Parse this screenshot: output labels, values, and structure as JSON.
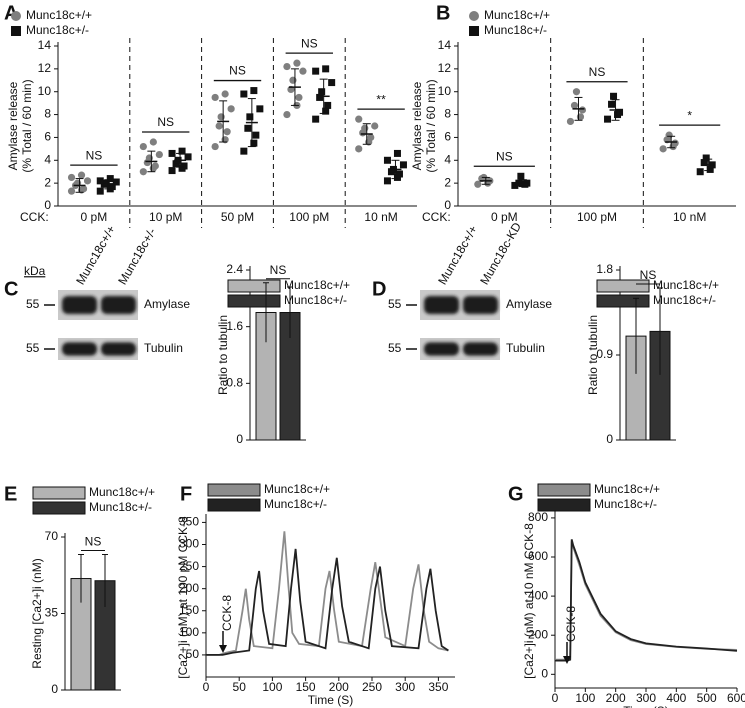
{
  "chart_data": [
    {
      "panel": "A",
      "type": "dot",
      "ylabel_lines": [
        "Amylase release",
        "(% Total / 60 min)"
      ],
      "xprefix": "CCK:",
      "categories": [
        "0 pM",
        "10 pM",
        "50 pM",
        "100 pM",
        "10 nM"
      ],
      "ylim": [
        0,
        14
      ],
      "yticks": [
        0,
        2,
        4,
        6,
        8,
        10,
        12,
        14
      ],
      "series": [
        {
          "name": "Munc18c+/+",
          "color": "#7f7f7f",
          "marker": "circle",
          "values": [
            [
              1.3,
              1.4,
              1.5,
              1.8,
              2.0,
              2.2,
              2.5,
              2.7
            ],
            [
              3.0,
              3.3,
              3.5,
              3.8,
              4.2,
              4.5,
              5.2,
              5.6
            ],
            [
              5.2,
              5.8,
              6.5,
              7.0,
              7.8,
              8.5,
              9.5,
              9.8
            ],
            [
              8.0,
              8.8,
              9.5,
              10.2,
              11.0,
              11.8,
              12.2,
              12.5
            ],
            [
              5.0,
              5.6,
              6.0,
              6.4,
              6.8,
              7.0,
              7.6
            ]
          ],
          "means": [
            1.8,
            3.9,
            7.4,
            10.4,
            6.3
          ],
          "errors": [
            0.6,
            0.9,
            1.8,
            1.6,
            0.9
          ]
        },
        {
          "name": "Munc18c+/-",
          "color": "#111111",
          "marker": "square",
          "values": [
            [
              1.3,
              1.5,
              1.7,
              1.9,
              2.0,
              2.1,
              2.2,
              2.4
            ],
            [
              3.1,
              3.3,
              3.5,
              3.7,
              4.0,
              4.3,
              4.6,
              4.8
            ],
            [
              4.8,
              5.5,
              6.2,
              6.8,
              7.8,
              8.5,
              9.8,
              10.1
            ],
            [
              7.6,
              8.3,
              8.8,
              9.5,
              10.0,
              10.8,
              11.8,
              12.0
            ],
            [
              2.2,
              2.5,
              2.8,
              3.0,
              3.2,
              3.6,
              4.0,
              4.6
            ]
          ],
          "means": [
            1.9,
            4.0,
            7.3,
            9.6,
            3.2
          ],
          "errors": [
            0.4,
            0.6,
            2.1,
            1.5,
            0.8
          ]
        }
      ],
      "significance": [
        "NS",
        "NS",
        "NS",
        "NS",
        "**"
      ]
    },
    {
      "panel": "B",
      "type": "dot",
      "ylabel_lines": [
        "Amylase release",
        "(% Total / 60 min)"
      ],
      "xprefix": "CCK:",
      "categories": [
        "0 pM",
        "100 pM",
        "10 nM"
      ],
      "ylim": [
        0,
        14
      ],
      "yticks": [
        0,
        2,
        4,
        6,
        8,
        10,
        12,
        14
      ],
      "series": [
        {
          "name": "Munc18c+/+",
          "color": "#7f7f7f",
          "marker": "circle",
          "values": [
            [
              1.9,
              2.0,
              2.2,
              2.4,
              2.5
            ],
            [
              7.4,
              7.8,
              8.4,
              8.8,
              10.0
            ],
            [
              5.0,
              5.2,
              5.5,
              5.8,
              6.2
            ]
          ],
          "means": [
            2.2,
            8.5,
            5.6
          ],
          "errors": [
            0.3,
            1.0,
            0.5
          ]
        },
        {
          "name": "Munc18c+/-",
          "color": "#111111",
          "marker": "square",
          "values": [
            [
              1.8,
              1.9,
              2.0,
              2.0,
              2.6
            ],
            [
              7.6,
              8.0,
              8.2,
              8.9,
              9.6
            ],
            [
              3.0,
              3.2,
              3.6,
              3.8,
              4.2
            ]
          ],
          "means": [
            2.0,
            8.4,
            3.6
          ],
          "errors": [
            0.3,
            0.9,
            0.5
          ]
        }
      ],
      "significance": [
        "NS",
        "NS",
        "*"
      ]
    },
    {
      "panel": "C",
      "type": "bar",
      "ylabel": "Ratio to tubulin",
      "ylim": [
        0,
        2.4
      ],
      "yticks": [
        0,
        0.8,
        1.6,
        2.4
      ],
      "series": [
        {
          "name": "Munc18c+/+",
          "color": "#b3b3b3",
          "values": [
            1.8
          ],
          "errors": [
            0.42
          ]
        },
        {
          "name": "Munc18c+/-",
          "color": "#333333",
          "values": [
            1.8
          ],
          "errors": [
            0.36
          ]
        }
      ],
      "significance": "NS",
      "blot": {
        "size_label": "kDa",
        "marker": "55",
        "lanes": [
          "Munc18c+/+",
          "Munc18c+/-"
        ],
        "bands": [
          "Amylase",
          "Tubulin"
        ]
      }
    },
    {
      "panel": "D",
      "type": "bar",
      "ylabel": "Ratio to tubulin",
      "ylim": [
        0,
        1.8
      ],
      "yticks": [
        0,
        0.9,
        1.8
      ],
      "series": [
        {
          "name": "Munc18c+/+",
          "color": "#b3b3b3",
          "values": [
            1.1
          ],
          "errors": [
            0.4
          ]
        },
        {
          "name": "Munc18c+/-",
          "color": "#333333",
          "values": [
            1.15
          ],
          "errors": [
            0.46
          ]
        }
      ],
      "significance": "NS",
      "blot": {
        "marker": "55",
        "lanes": [
          "Munc18c+/+",
          "Munc18c-KD"
        ],
        "bands": [
          "Amylase",
          "Tubulin"
        ]
      }
    },
    {
      "panel": "E",
      "type": "bar",
      "ylabel": "Resting [Ca2+]i (nM)",
      "ylim": [
        0,
        70
      ],
      "yticks": [
        0,
        35,
        70
      ],
      "series": [
        {
          "name": "Munc18c+/+",
          "color": "#b3b3b3",
          "values": [
            51
          ],
          "errors": [
            11
          ]
        },
        {
          "name": "Munc18c+/-",
          "color": "#333333",
          "values": [
            50
          ],
          "errors": [
            12
          ]
        }
      ],
      "significance": "NS"
    },
    {
      "panel": "F",
      "type": "line",
      "ylabel": "[Ca2+]i (nM) at 100 pM CCK-8",
      "xlabel": "Time (S)",
      "annotation": "CCK-8",
      "xlim": [
        0,
        375
      ],
      "xticks": [
        0,
        50,
        100,
        150,
        200,
        250,
        300,
        350
      ],
      "ylim": [
        0,
        360
      ],
      "yticks": [
        50,
        100,
        150,
        200,
        250,
        300,
        350
      ],
      "series": [
        {
          "name": "Munc18c+/+",
          "color": "#8c8c8c",
          "x": [
            0,
            20,
            30,
            45,
            55,
            60,
            65,
            72,
            100,
            110,
            118,
            124,
            130,
            140,
            170,
            180,
            186,
            193,
            200,
            235,
            248,
            255,
            262,
            270,
            300,
            312,
            320,
            328,
            336,
            350,
            365
          ],
          "values": [
            50,
            50,
            55,
            60,
            150,
            200,
            130,
            70,
            65,
            200,
            330,
            210,
            100,
            75,
            70,
            200,
            240,
            150,
            80,
            70,
            200,
            260,
            180,
            90,
            70,
            200,
            255,
            150,
            80,
            65,
            60
          ]
        },
        {
          "name": "Munc18c+/-",
          "color": "#222222",
          "x": [
            0,
            25,
            40,
            65,
            75,
            80,
            86,
            95,
            120,
            128,
            135,
            142,
            150,
            180,
            190,
            197,
            205,
            215,
            245,
            255,
            262,
            270,
            280,
            320,
            332,
            338,
            346,
            355,
            365
          ],
          "values": [
            50,
            50,
            55,
            60,
            200,
            240,
            150,
            75,
            70,
            200,
            290,
            170,
            80,
            65,
            200,
            270,
            160,
            80,
            65,
            200,
            250,
            150,
            70,
            65,
            200,
            245,
            150,
            70,
            60
          ]
        }
      ]
    },
    {
      "panel": "G",
      "type": "line",
      "ylabel": "[Ca2+]i (nM) at 10 nM CCK-8",
      "xlabel": "Time (S)",
      "annotation": "CCK-8",
      "xlim": [
        0,
        600
      ],
      "xticks": [
        0,
        100,
        200,
        300,
        400,
        500,
        600
      ],
      "ylim": [
        -70,
        820
      ],
      "yticks": [
        0,
        200,
        400,
        600,
        800
      ],
      "series": [
        {
          "name": "Munc18c+/+",
          "color": "#8c8c8c",
          "x": [
            0,
            40,
            50,
            55,
            60,
            80,
            100,
            150,
            200,
            250,
            300,
            400,
            500,
            600
          ],
          "values": [
            75,
            75,
            80,
            680,
            650,
            560,
            460,
            300,
            215,
            175,
            155,
            140,
            130,
            125
          ]
        },
        {
          "name": "Munc18c+/-",
          "color": "#222222",
          "x": [
            0,
            40,
            50,
            55,
            60,
            80,
            100,
            150,
            200,
            250,
            300,
            400,
            500,
            600
          ],
          "values": [
            70,
            70,
            75,
            690,
            660,
            575,
            470,
            310,
            220,
            180,
            158,
            142,
            132,
            120
          ]
        }
      ]
    }
  ]
}
